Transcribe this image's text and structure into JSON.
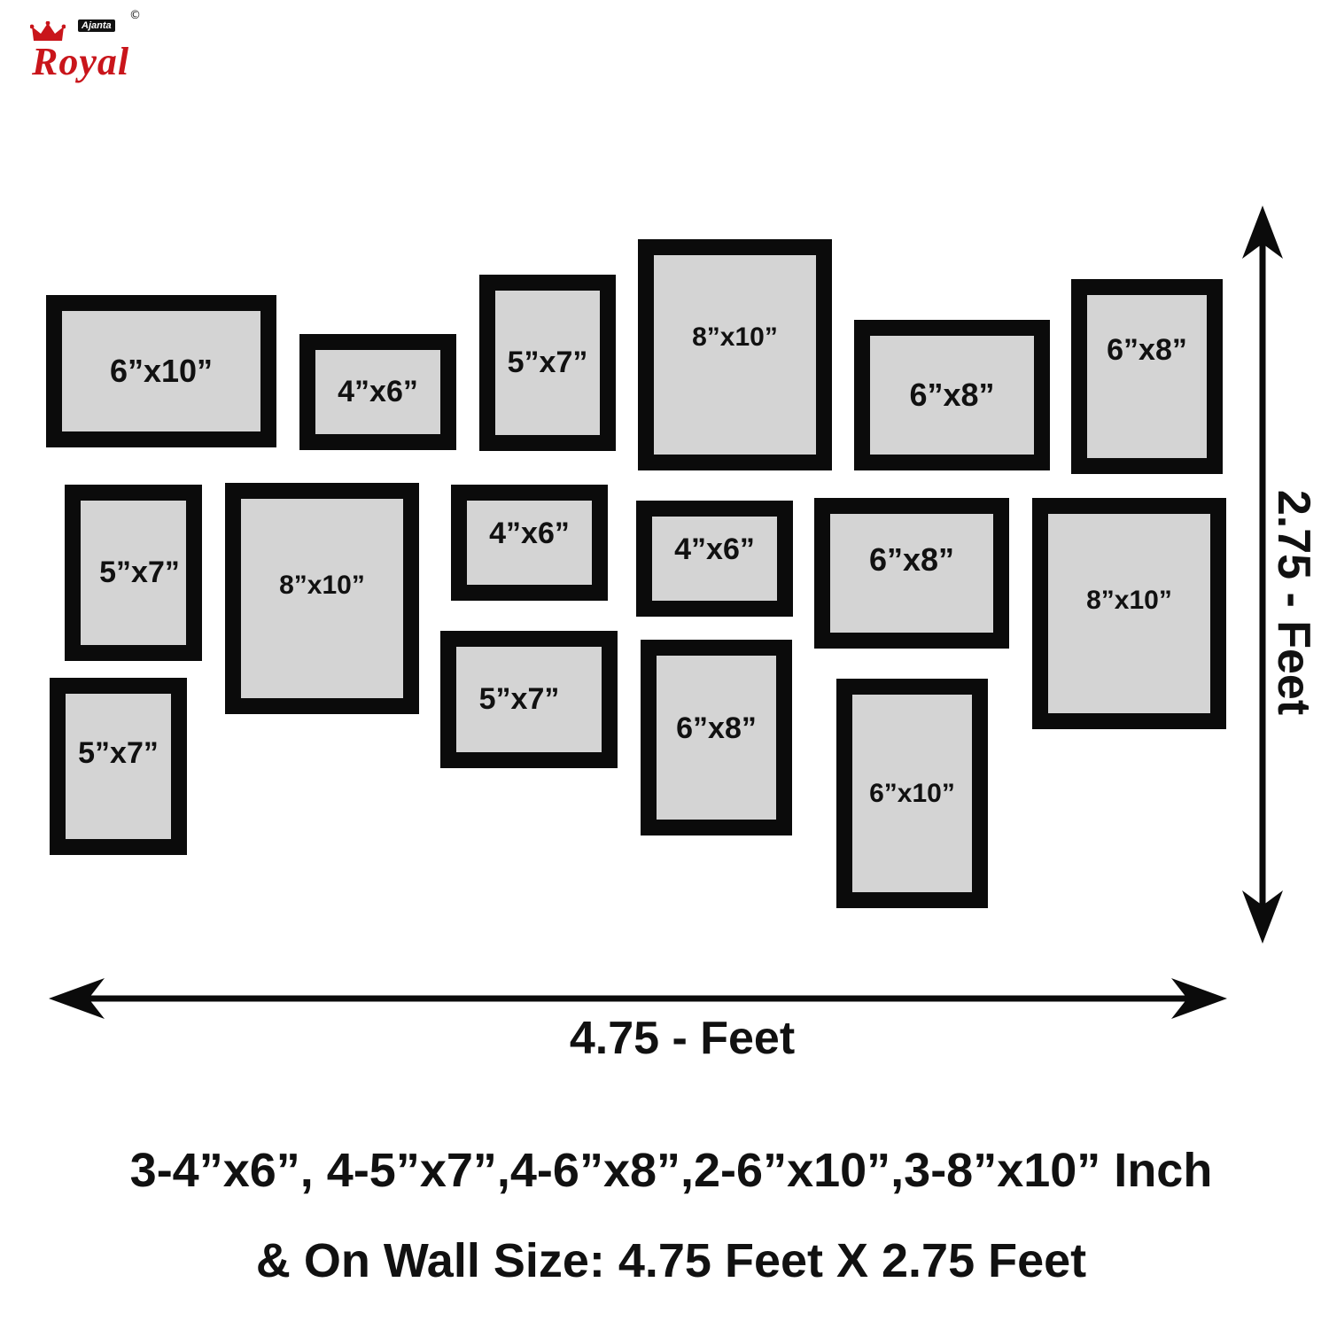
{
  "logo": {
    "brand": "Royal",
    "sub": "Ajanta",
    "mark": "©",
    "crown_icon": "crown-icon",
    "brand_color": "#c9151b"
  },
  "frames": [
    {
      "label": "6”x10”"
    },
    {
      "label": "4”x6”"
    },
    {
      "label": "5”x7”"
    },
    {
      "label": "8”x10”"
    },
    {
      "label": "6”x8”"
    },
    {
      "label": "6”x8”"
    },
    {
      "label": "5”x7”"
    },
    {
      "label": "8”x10”"
    },
    {
      "label": "4”x6”"
    },
    {
      "label": "4”x6”"
    },
    {
      "label": "6”x8”"
    },
    {
      "label": "8”x10”"
    },
    {
      "label": "5”x7”"
    },
    {
      "label": "5”x7”"
    },
    {
      "label": "6”x8”"
    },
    {
      "label": "6”x10”"
    }
  ],
  "dimensions": {
    "width_label": "4.75 - Feet",
    "height_label": "2.75 - Feet"
  },
  "summary": {
    "line1": "3-4”x6”, 4-5”x7”,4-6”x8”,2-6”x10”,3-8”x10” Inch",
    "line2": "& On Wall Size:  4.75 Feet X 2.75 Feet"
  },
  "colors": {
    "frame": "#0b0b0b",
    "mat": "#d4d4d4",
    "text": "#111111"
  }
}
